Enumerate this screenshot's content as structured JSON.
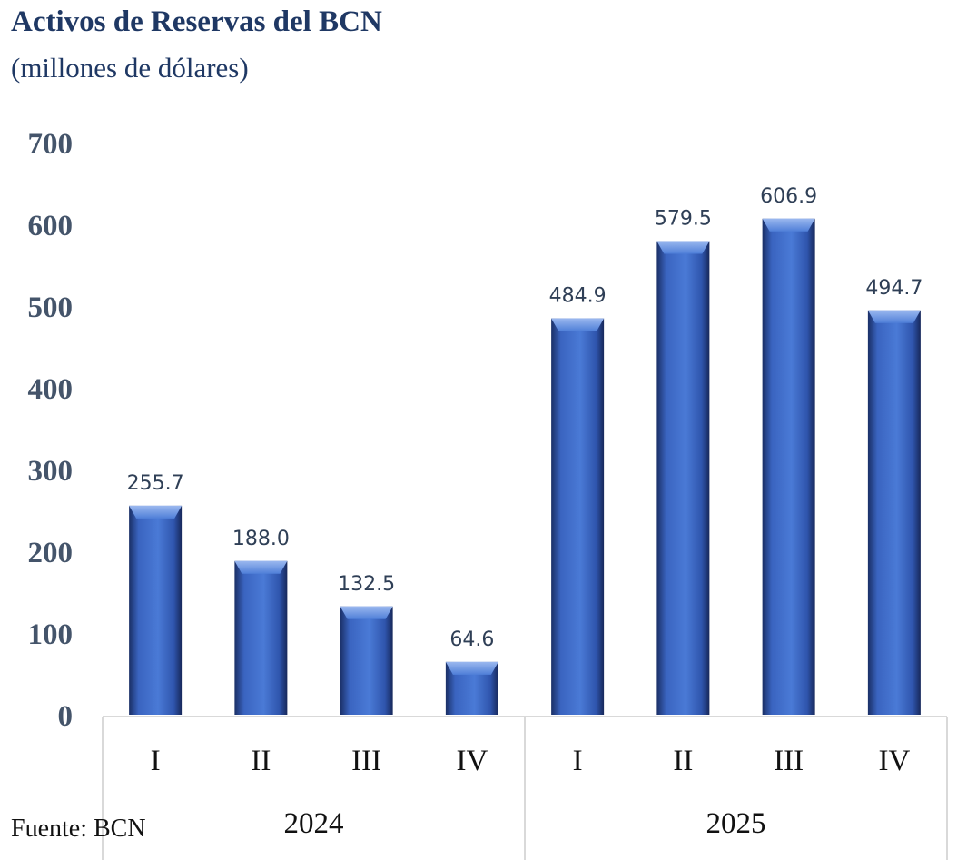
{
  "title": "Activos de Reservas del BCN",
  "subtitle": "(millones de dólares)",
  "source": "Fuente: BCN",
  "colors": {
    "bar_main": "#3a6bc8",
    "bar_dark": "#1a2f66",
    "bar_light": "#7fa2e6",
    "axis_text": "#44546a",
    "title": "#1f3864"
  },
  "chart_data": {
    "type": "bar",
    "title": "Activos de Reservas del BCN",
    "subtitle": "(millones de dólares)",
    "categories": [
      "I",
      "II",
      "III",
      "IV",
      "I",
      "II",
      "III",
      "IV"
    ],
    "groups": [
      {
        "label": "2024",
        "count": 4
      },
      {
        "label": "2025",
        "count": 4
      }
    ],
    "series": [
      {
        "values": [
          255.7,
          188.0,
          132.5,
          64.6,
          484.9,
          579.5,
          606.9,
          494.7
        ]
      }
    ],
    "data_labels": [
      "255.7",
      "188.0",
      "132.5",
      "64.6",
      "484.9",
      "579.5",
      "606.9",
      "494.7"
    ],
    "yticks": [
      0,
      100,
      200,
      300,
      400,
      500,
      600,
      700
    ],
    "ylim": [
      0,
      700
    ],
    "grid": false,
    "legend": "none"
  }
}
